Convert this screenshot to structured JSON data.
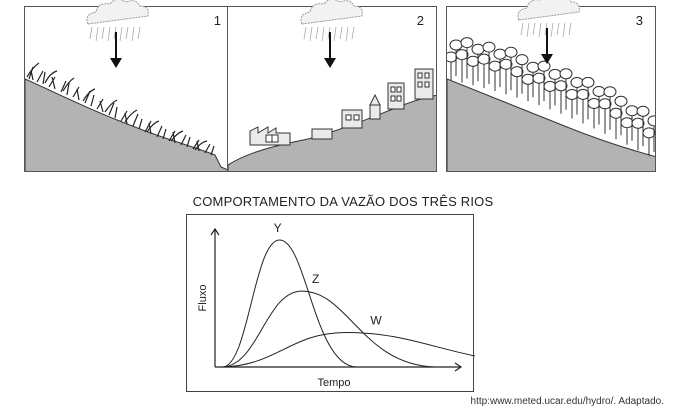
{
  "panels": [
    {
      "number": "1",
      "scene": "grass-slope"
    },
    {
      "number": "2",
      "scene": "urban-slope"
    },
    {
      "number": "3",
      "scene": "forest-slope"
    }
  ],
  "chart_title": "COMPORTAMENTO DA VAZÃO DOS TRÊS RIOS",
  "chart_data": {
    "type": "line",
    "title": "COMPORTAMENTO DA VAZÃO DOS TRÊS RIOS",
    "xlabel": "Tempo",
    "ylabel": "Fluxo",
    "series": [
      {
        "name": "Y",
        "peak_time": 0.23,
        "peak_flow": 0.92
      },
      {
        "name": "Z",
        "peak_time": 0.32,
        "peak_flow": 0.55
      },
      {
        "name": "W",
        "peak_time": 0.5,
        "peak_flow": 0.25
      }
    ]
  },
  "source": "http:www.meted.ucar.edu/hydro/. Adaptado."
}
